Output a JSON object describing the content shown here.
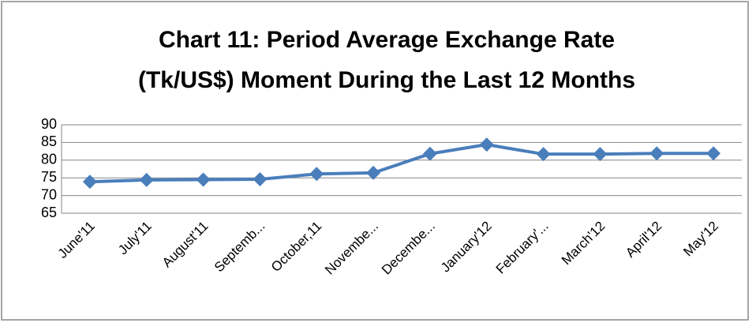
{
  "chart_data": {
    "type": "line",
    "title": [
      "Chart 11: Period Average Exchange Rate",
      "(Tk/US$) Moment During the Last 12 Months"
    ],
    "categories": [
      "June'11",
      "July'11",
      "August'11",
      "Septemb...",
      "October,11",
      "Novembe...",
      "Decembe...",
      "January'12",
      "February'...",
      "March'12",
      "April'12",
      "May'12"
    ],
    "series": [
      {
        "color": "#4a7ebb",
        "values": [
          73.9,
          74.4,
          74.5,
          74.6,
          76.1,
          76.4,
          81.8,
          84.4,
          81.7,
          81.7,
          81.9,
          81.9
        ]
      }
    ],
    "ylim": [
      65,
      90
    ],
    "yticks": [
      65,
      70,
      75,
      80,
      85,
      90
    ],
    "grid": true
  }
}
